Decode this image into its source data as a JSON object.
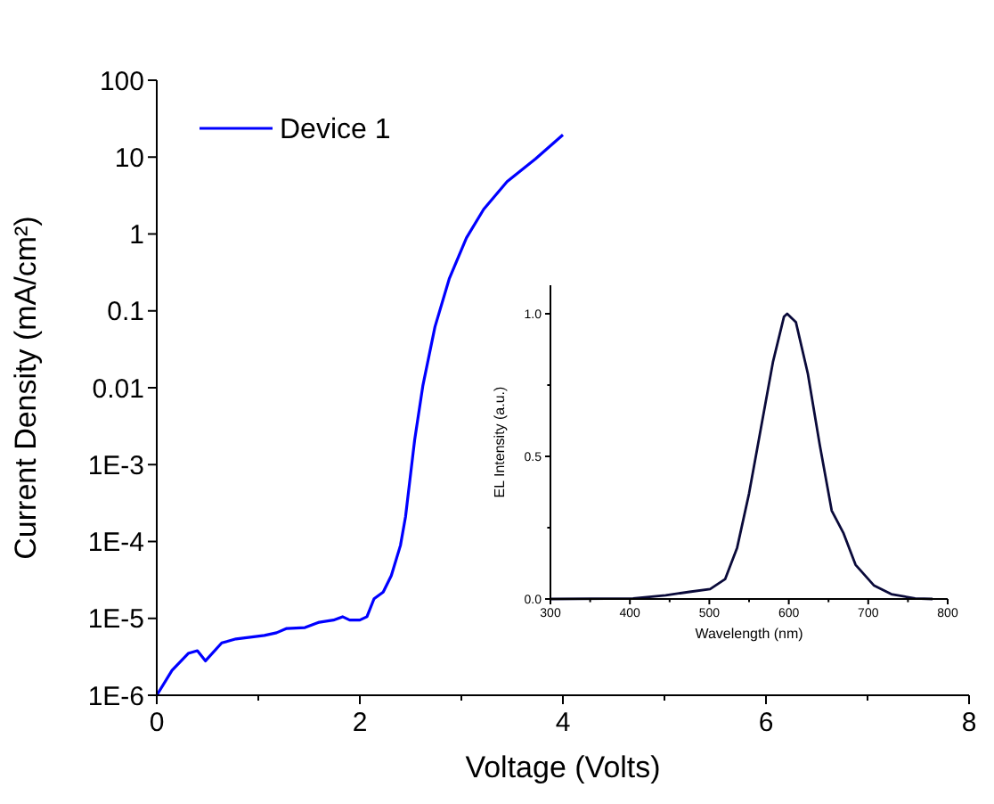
{
  "chart_data": [
    {
      "type": "line",
      "xlabel": "Voltage (Volts)",
      "ylabel": "Current Density (mA/cm²)",
      "log": true,
      "legend": "top left",
      "xlim": [
        0,
        8
      ],
      "ylim": [
        1e-06,
        100
      ],
      "xticks": [
        0,
        {
          "value": 1,
          "label": null
        },
        2,
        {
          "value": 3,
          "label": null
        },
        4,
        {
          "value": 5,
          "label": null
        },
        6,
        {
          "value": 7,
          "label": null
        },
        8
      ],
      "yticks": [
        {
          "value": 1e-06,
          "label": "1E-6"
        },
        {
          "value": 1e-05,
          "label": "1E-5"
        },
        {
          "value": 0.0001,
          "label": "1E-4"
        },
        {
          "value": 0.001,
          "label": "1E-3"
        },
        0.01,
        0.1,
        1,
        10,
        100
      ],
      "series": [
        {
          "name": "Device 1",
          "color": "#0000ff",
          "x": [
            0,
            0.15,
            0.31,
            0.4,
            0.48,
            0.64,
            0.78,
            1.06,
            1.18,
            1.28,
            1.46,
            1.6,
            1.74,
            1.83,
            1.9,
            2.0,
            2.07,
            2.14,
            2.23,
            2.31,
            2.4,
            2.45,
            2.54,
            2.62,
            2.74,
            2.88,
            3.05,
            3.22,
            3.45,
            3.73,
            4.0
          ],
          "values": [
            1e-06,
            2.1e-06,
            3.5e-06,
            3.8e-06,
            2.8e-06,
            4.8e-06,
            5.4e-06,
            6e-06,
            6.5e-06,
            7.4e-06,
            7.6e-06,
            8.9e-06,
            9.5e-06,
            1.05e-05,
            9.5e-06,
            9.5e-06,
            1.05e-05,
            1.8e-05,
            2.2e-05,
            3.6e-05,
            8.9e-05,
            0.00021,
            0.0021,
            0.0105,
            0.062,
            0.26,
            0.89,
            2.1,
            4.8,
            9.5,
            19.5
          ]
        }
      ]
    },
    {
      "type": "line",
      "xlabel": "Wavelength (nm)",
      "ylabel": "EL Intensity (a.u.)",
      "xlim": [
        300,
        800
      ],
      "ylim": [
        0,
        1.1
      ],
      "xticks": [
        300,
        {
          "value": 350,
          "label": null
        },
        400,
        {
          "value": 450,
          "label": null
        },
        500,
        {
          "value": 550,
          "label": null
        },
        600,
        {
          "value": 650,
          "label": null
        },
        700,
        {
          "value": 750,
          "label": null
        },
        800
      ],
      "yticks": [
        {
          "value": 0,
          "label": "0.0"
        },
        {
          "value": 0.25,
          "label": null
        },
        0.5,
        {
          "value": 0.75,
          "label": null
        },
        {
          "value": 1,
          "label": "1.0"
        }
      ],
      "series": [
        {
          "color": "#0a0a3a",
          "x": [
            300,
            404,
            445,
            475,
            501,
            520,
            535,
            550,
            565,
            580,
            594,
            598,
            609,
            624,
            639,
            654,
            669,
            684,
            707,
            729,
            759,
            781
          ],
          "values": [
            0,
            0.002,
            0.013,
            0.025,
            0.035,
            0.07,
            0.18,
            0.37,
            0.6,
            0.83,
            0.99,
            1.0,
            0.97,
            0.79,
            0.54,
            0.31,
            0.23,
            0.12,
            0.048,
            0.017,
            0.002,
            0
          ]
        }
      ]
    }
  ]
}
